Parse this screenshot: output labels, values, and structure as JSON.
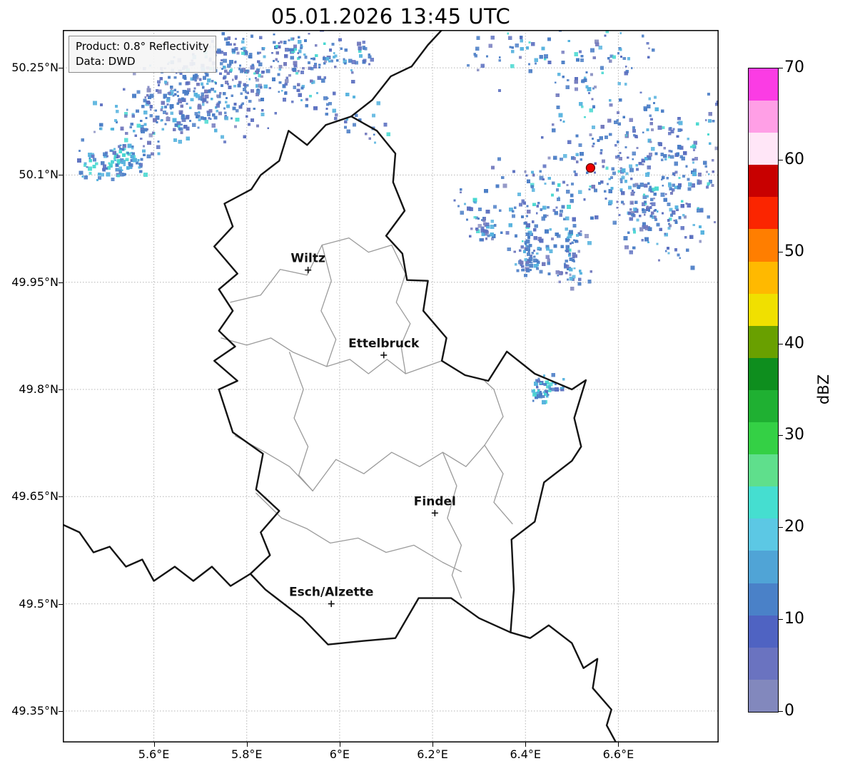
{
  "title": "05.01.2026 13:45 UTC",
  "info_box": {
    "line1": "Product: 0.8° Reflectivity",
    "line2": "Data: DWD"
  },
  "axes": {
    "lon_ticks": {
      "values": [
        5.6,
        5.8,
        6.0,
        6.2,
        6.4,
        6.6
      ],
      "labels": [
        "5.6°E",
        "5.8°E",
        "6°E",
        "6.2°E",
        "6.4°E",
        "6.6°E"
      ]
    },
    "lat_ticks": {
      "values": [
        49.35,
        49.5,
        49.65,
        49.8,
        49.95,
        50.1,
        50.25
      ],
      "labels": [
        "49.35°N",
        "49.5°N",
        "49.65°N",
        "49.8°N",
        "49.95°N",
        "50.1°N",
        "50.25°N"
      ]
    }
  },
  "map": {
    "extent": {
      "lon_min": 5.404,
      "lon_max": 6.816,
      "lat_min": 49.306,
      "lat_max": 50.303
    },
    "cities": [
      {
        "id": "wiltz",
        "name": "Wiltz",
        "lon": 5.932,
        "lat": 49.967
      },
      {
        "id": "ettelbruck",
        "name": "Ettelbruck",
        "lon": 6.095,
        "lat": 49.848
      },
      {
        "id": "findel",
        "name": "Findel",
        "lon": 6.205,
        "lat": 49.627
      },
      {
        "id": "esch-alzette",
        "name": "Esch/Alzette",
        "lon": 5.982,
        "lat": 49.5
      }
    ],
    "radar_site": {
      "lon": 6.54,
      "lat": 50.11,
      "color": "#ee0000"
    },
    "country_borders": [
      {
        "name": "luxembourg",
        "points": [
          [
            5.97,
            50.17
          ],
          [
            6.025,
            50.182
          ],
          [
            6.08,
            50.162
          ],
          [
            6.12,
            50.13
          ],
          [
            6.115,
            50.09
          ],
          [
            6.14,
            50.05
          ],
          [
            6.1,
            50.015
          ],
          [
            6.135,
            49.99
          ],
          [
            6.145,
            49.953
          ],
          [
            6.19,
            49.952
          ],
          [
            6.18,
            49.91
          ],
          [
            6.23,
            49.872
          ],
          [
            6.22,
            49.84
          ],
          [
            6.27,
            49.82
          ],
          [
            6.32,
            49.812
          ],
          [
            6.36,
            49.853
          ],
          [
            6.42,
            49.822
          ],
          [
            6.5,
            49.8
          ],
          [
            6.53,
            49.813
          ],
          [
            6.505,
            49.76
          ],
          [
            6.52,
            49.72
          ],
          [
            6.5,
            49.7
          ],
          [
            6.44,
            49.67
          ],
          [
            6.42,
            49.615
          ],
          [
            6.37,
            49.59
          ],
          [
            6.375,
            49.52
          ],
          [
            6.368,
            49.46
          ],
          [
            6.3,
            49.48
          ],
          [
            6.24,
            49.508
          ],
          [
            6.17,
            49.508
          ],
          [
            6.12,
            49.452
          ],
          [
            6.05,
            49.448
          ],
          [
            5.975,
            49.443
          ],
          [
            5.92,
            49.48
          ],
          [
            5.84,
            49.52
          ],
          [
            5.808,
            49.542
          ],
          [
            5.85,
            49.568
          ],
          [
            5.83,
            49.6
          ],
          [
            5.87,
            49.63
          ],
          [
            5.82,
            49.66
          ],
          [
            5.835,
            49.71
          ],
          [
            5.77,
            49.74
          ],
          [
            5.74,
            49.8
          ],
          [
            5.78,
            49.812
          ],
          [
            5.73,
            49.84
          ],
          [
            5.775,
            49.86
          ],
          [
            5.74,
            49.882
          ],
          [
            5.77,
            49.91
          ],
          [
            5.74,
            49.94
          ],
          [
            5.78,
            49.962
          ],
          [
            5.73,
            50.0
          ],
          [
            5.77,
            50.028
          ],
          [
            5.752,
            50.06
          ],
          [
            5.81,
            50.08
          ],
          [
            5.83,
            50.1
          ],
          [
            5.87,
            50.12
          ],
          [
            5.89,
            50.162
          ],
          [
            5.93,
            50.142
          ],
          [
            5.97,
            50.17
          ]
        ]
      },
      {
        "name": "belgium-germany",
        "points": [
          [
            6.025,
            50.182
          ],
          [
            6.07,
            50.205
          ],
          [
            6.11,
            50.238
          ],
          [
            6.155,
            50.252
          ],
          [
            6.19,
            50.282
          ],
          [
            6.23,
            50.31
          ]
        ]
      },
      {
        "name": "france-germany",
        "points": [
          [
            6.368,
            49.46
          ],
          [
            6.41,
            49.452
          ],
          [
            6.45,
            49.47
          ],
          [
            6.5,
            49.445
          ],
          [
            6.525,
            49.41
          ],
          [
            6.555,
            49.423
          ],
          [
            6.545,
            49.382
          ],
          [
            6.585,
            49.352
          ],
          [
            6.575,
            49.33
          ],
          [
            6.6,
            49.3
          ]
        ]
      },
      {
        "name": "france-belgium",
        "points": [
          [
            5.4,
            49.612
          ],
          [
            5.44,
            49.6
          ],
          [
            5.47,
            49.572
          ],
          [
            5.505,
            49.58
          ],
          [
            5.54,
            49.552
          ],
          [
            5.575,
            49.562
          ],
          [
            5.6,
            49.532
          ],
          [
            5.645,
            49.552
          ],
          [
            5.685,
            49.532
          ],
          [
            5.725,
            49.552
          ],
          [
            5.765,
            49.525
          ],
          [
            5.808,
            49.542
          ]
        ]
      }
    ],
    "district_borders": [
      [
        [
          5.765,
          49.922
        ],
        [
          5.83,
          49.932
        ],
        [
          5.872,
          49.968
        ],
        [
          5.93,
          49.96
        ],
        [
          5.962,
          50.002
        ],
        [
          6.02,
          50.012
        ],
        [
          6.062,
          49.992
        ],
        [
          6.112,
          50.002
        ]
      ],
      [
        [
          5.962,
          50.002
        ],
        [
          5.982,
          49.952
        ],
        [
          5.96,
          49.91
        ],
        [
          5.992,
          49.87
        ],
        [
          5.972,
          49.832
        ]
      ],
      [
        [
          5.745,
          49.872
        ],
        [
          5.8,
          49.862
        ],
        [
          5.852,
          49.872
        ],
        [
          5.9,
          49.852
        ],
        [
          5.972,
          49.832
        ],
        [
          6.022,
          49.842
        ],
        [
          6.062,
          49.822
        ],
        [
          6.102,
          49.842
        ],
        [
          6.142,
          49.822
        ],
        [
          6.22,
          49.84
        ]
      ],
      [
        [
          6.112,
          50.002
        ],
        [
          6.142,
          49.962
        ],
        [
          6.122,
          49.922
        ],
        [
          6.152,
          49.892
        ],
        [
          6.132,
          49.862
        ],
        [
          6.142,
          49.822
        ]
      ],
      [
        [
          5.892,
          49.852
        ],
        [
          5.922,
          49.8
        ],
        [
          5.902,
          49.76
        ],
        [
          5.932,
          49.72
        ],
        [
          5.912,
          49.68
        ],
        [
          5.942,
          49.658
        ]
      ],
      [
        [
          5.775,
          49.735
        ],
        [
          5.84,
          49.712
        ],
        [
          5.892,
          49.692
        ],
        [
          5.942,
          49.658
        ]
      ],
      [
        [
          5.942,
          49.658
        ],
        [
          5.992,
          49.702
        ],
        [
          6.052,
          49.682
        ],
        [
          6.112,
          49.712
        ],
        [
          6.172,
          49.692
        ],
        [
          6.222,
          49.712
        ],
        [
          6.272,
          49.692
        ],
        [
          6.312,
          49.722
        ]
      ],
      [
        [
          5.82,
          49.655
        ],
        [
          5.875,
          49.62
        ],
        [
          5.93,
          49.605
        ],
        [
          5.98,
          49.585
        ],
        [
          6.04,
          49.592
        ],
        [
          6.1,
          49.572
        ],
        [
          6.16,
          49.582
        ],
        [
          6.222,
          49.558
        ],
        [
          6.262,
          49.545
        ]
      ],
      [
        [
          6.222,
          49.712
        ],
        [
          6.252,
          49.665
        ],
        [
          6.232,
          49.62
        ],
        [
          6.262,
          49.582
        ],
        [
          6.242,
          49.54
        ],
        [
          6.262,
          49.508
        ]
      ],
      [
        [
          6.312,
          49.722
        ],
        [
          6.352,
          49.762
        ],
        [
          6.332,
          49.8
        ],
        [
          6.312,
          49.812
        ]
      ],
      [
        [
          6.312,
          49.722
        ],
        [
          6.352,
          49.682
        ],
        [
          6.332,
          49.642
        ],
        [
          6.372,
          49.612
        ]
      ]
    ]
  },
  "radar": {
    "palettes": {
      "blue": [
        [
          "#4a7dc6",
          0.4
        ],
        [
          "#5b6fc0",
          0.2
        ],
        [
          "#7279bd",
          0.14
        ],
        [
          "#55b2de",
          0.16
        ],
        [
          "#47d8d0",
          0.06
        ],
        [
          "#8a90c2",
          0.04
        ]
      ],
      "cyan": [
        [
          "#4a7dc6",
          0.3
        ],
        [
          "#55b2de",
          0.28
        ],
        [
          "#47d8d0",
          0.26
        ],
        [
          "#5b6fc0",
          0.16
        ]
      ]
    },
    "clusters": [
      {
        "id": "northwest-large",
        "lon": 5.76,
        "lat": 50.235,
        "w": 0.46,
        "h": 0.17,
        "n": 520,
        "seed": 7,
        "palette": "blue"
      },
      {
        "id": "west-small",
        "lon": 5.515,
        "lat": 50.115,
        "w": 0.14,
        "h": 0.1,
        "n": 110,
        "seed": 11,
        "palette": "cyan"
      },
      {
        "id": "north-sparse",
        "lon": 5.99,
        "lat": 50.225,
        "w": 0.3,
        "h": 0.13,
        "n": 70,
        "seed": 31,
        "palette": "blue"
      },
      {
        "id": "northeast-large",
        "lon": 6.57,
        "lat": 50.16,
        "w": 0.5,
        "h": 0.28,
        "n": 620,
        "seed": 23,
        "palette": "blue"
      },
      {
        "id": "east-mid",
        "lon": 6.47,
        "lat": 49.975,
        "w": 0.17,
        "h": 0.13,
        "n": 130,
        "seed": 5,
        "palette": "blue"
      },
      {
        "id": "northeast-outlier",
        "lon": 6.3,
        "lat": 50.045,
        "w": 0.1,
        "h": 0.08,
        "n": 45,
        "seed": 17,
        "palette": "blue"
      },
      {
        "id": "east-border-blob",
        "lon": 6.475,
        "lat": 49.815,
        "w": 0.105,
        "h": 0.05,
        "n": 60,
        "seed": 13,
        "palette": "cyan"
      }
    ]
  },
  "colorbar": {
    "label": "dBZ",
    "min": 0,
    "max": 70,
    "ticks": [
      0,
      10,
      20,
      30,
      40,
      50,
      60,
      70
    ],
    "band_step": 3.5,
    "colors_bottom_to_top": [
      "#8288bd",
      "#6a73c0",
      "#4f63c2",
      "#4a81c8",
      "#50a4d6",
      "#5cc8e4",
      "#45ded0",
      "#5fdf8c",
      "#34d045",
      "#1fb032",
      "#0e8e1e",
      "#69a000",
      "#f0e000",
      "#ffb900",
      "#ff7e00",
      "#fb2500",
      "#c80000",
      "#ffe6f7",
      "#ff9fe6",
      "#fb3ce4"
    ]
  }
}
